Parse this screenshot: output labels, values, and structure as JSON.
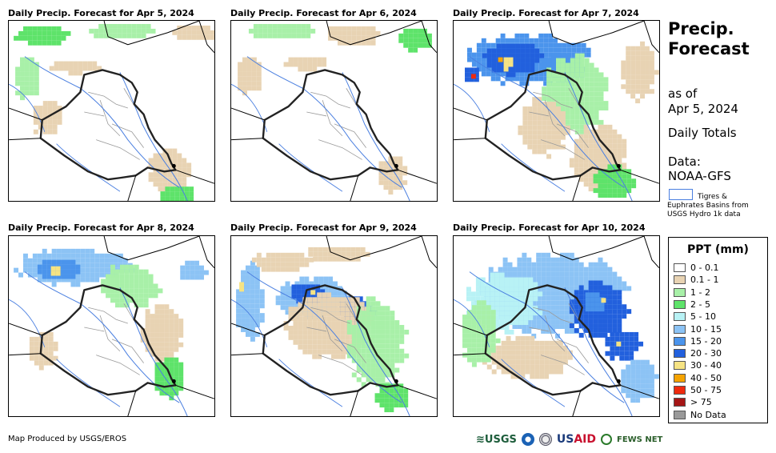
{
  "panels": [
    {
      "title": "Daily Precip. Forecast for Apr 5, 2024",
      "level": "light"
    },
    {
      "title": "Daily Precip. Forecast for Apr 6, 2024",
      "level": "minimal"
    },
    {
      "title": "Daily Precip. Forecast for Apr 7, 2024",
      "level": "heavy-north"
    },
    {
      "title": "Daily Precip. Forecast for Apr 8, 2024",
      "level": "moderate"
    },
    {
      "title": "Daily Precip. Forecast for Apr 9, 2024",
      "level": "moderate-central"
    },
    {
      "title": "Daily Precip. Forecast for Apr 10, 2024",
      "level": "heavy-east"
    }
  ],
  "sidebar": {
    "title_line1": "Precip.",
    "title_line2": "Forecast",
    "as_of_label": "as of",
    "as_of_date": "Apr 5, 2024",
    "totals": "Daily Totals",
    "data_label": "Data:",
    "data_source": "NOAA-GFS",
    "basin_line1": "Tigres &",
    "basin_line2": "Euphrates Basins from",
    "basin_line3": "USGS Hydro 1k data"
  },
  "legend": {
    "title": "PPT (mm)",
    "items": [
      {
        "label": "0 - 0.1",
        "color": "#ffffff"
      },
      {
        "label": "0.1 - 1",
        "color": "#e8d3b3"
      },
      {
        "label": "1 - 2",
        "color": "#a8f0a8"
      },
      {
        "label": "2 - 5",
        "color": "#5ee36a"
      },
      {
        "label": "5 - 10",
        "color": "#b8f2f5"
      },
      {
        "label": "10 - 15",
        "color": "#8cc3f5"
      },
      {
        "label": "15 - 20",
        "color": "#4b94ec"
      },
      {
        "label": "20 - 30",
        "color": "#2260dd"
      },
      {
        "label": "30 - 40",
        "color": "#f6e383"
      },
      {
        "label": "40 - 50",
        "color": "#f5a300"
      },
      {
        "label": "50 - 75",
        "color": "#ee2a0e"
      },
      {
        "label": "> 75",
        "color": "#a51616"
      },
      {
        "label": "No Data",
        "color": "#999999"
      }
    ]
  },
  "footer": {
    "credit": "Map Produced by USGS/EROS",
    "logo_usgs": "USGS",
    "logo_usaid_a": "US",
    "logo_usaid_b": "AID",
    "logo_fews": "FEWS NET"
  }
}
